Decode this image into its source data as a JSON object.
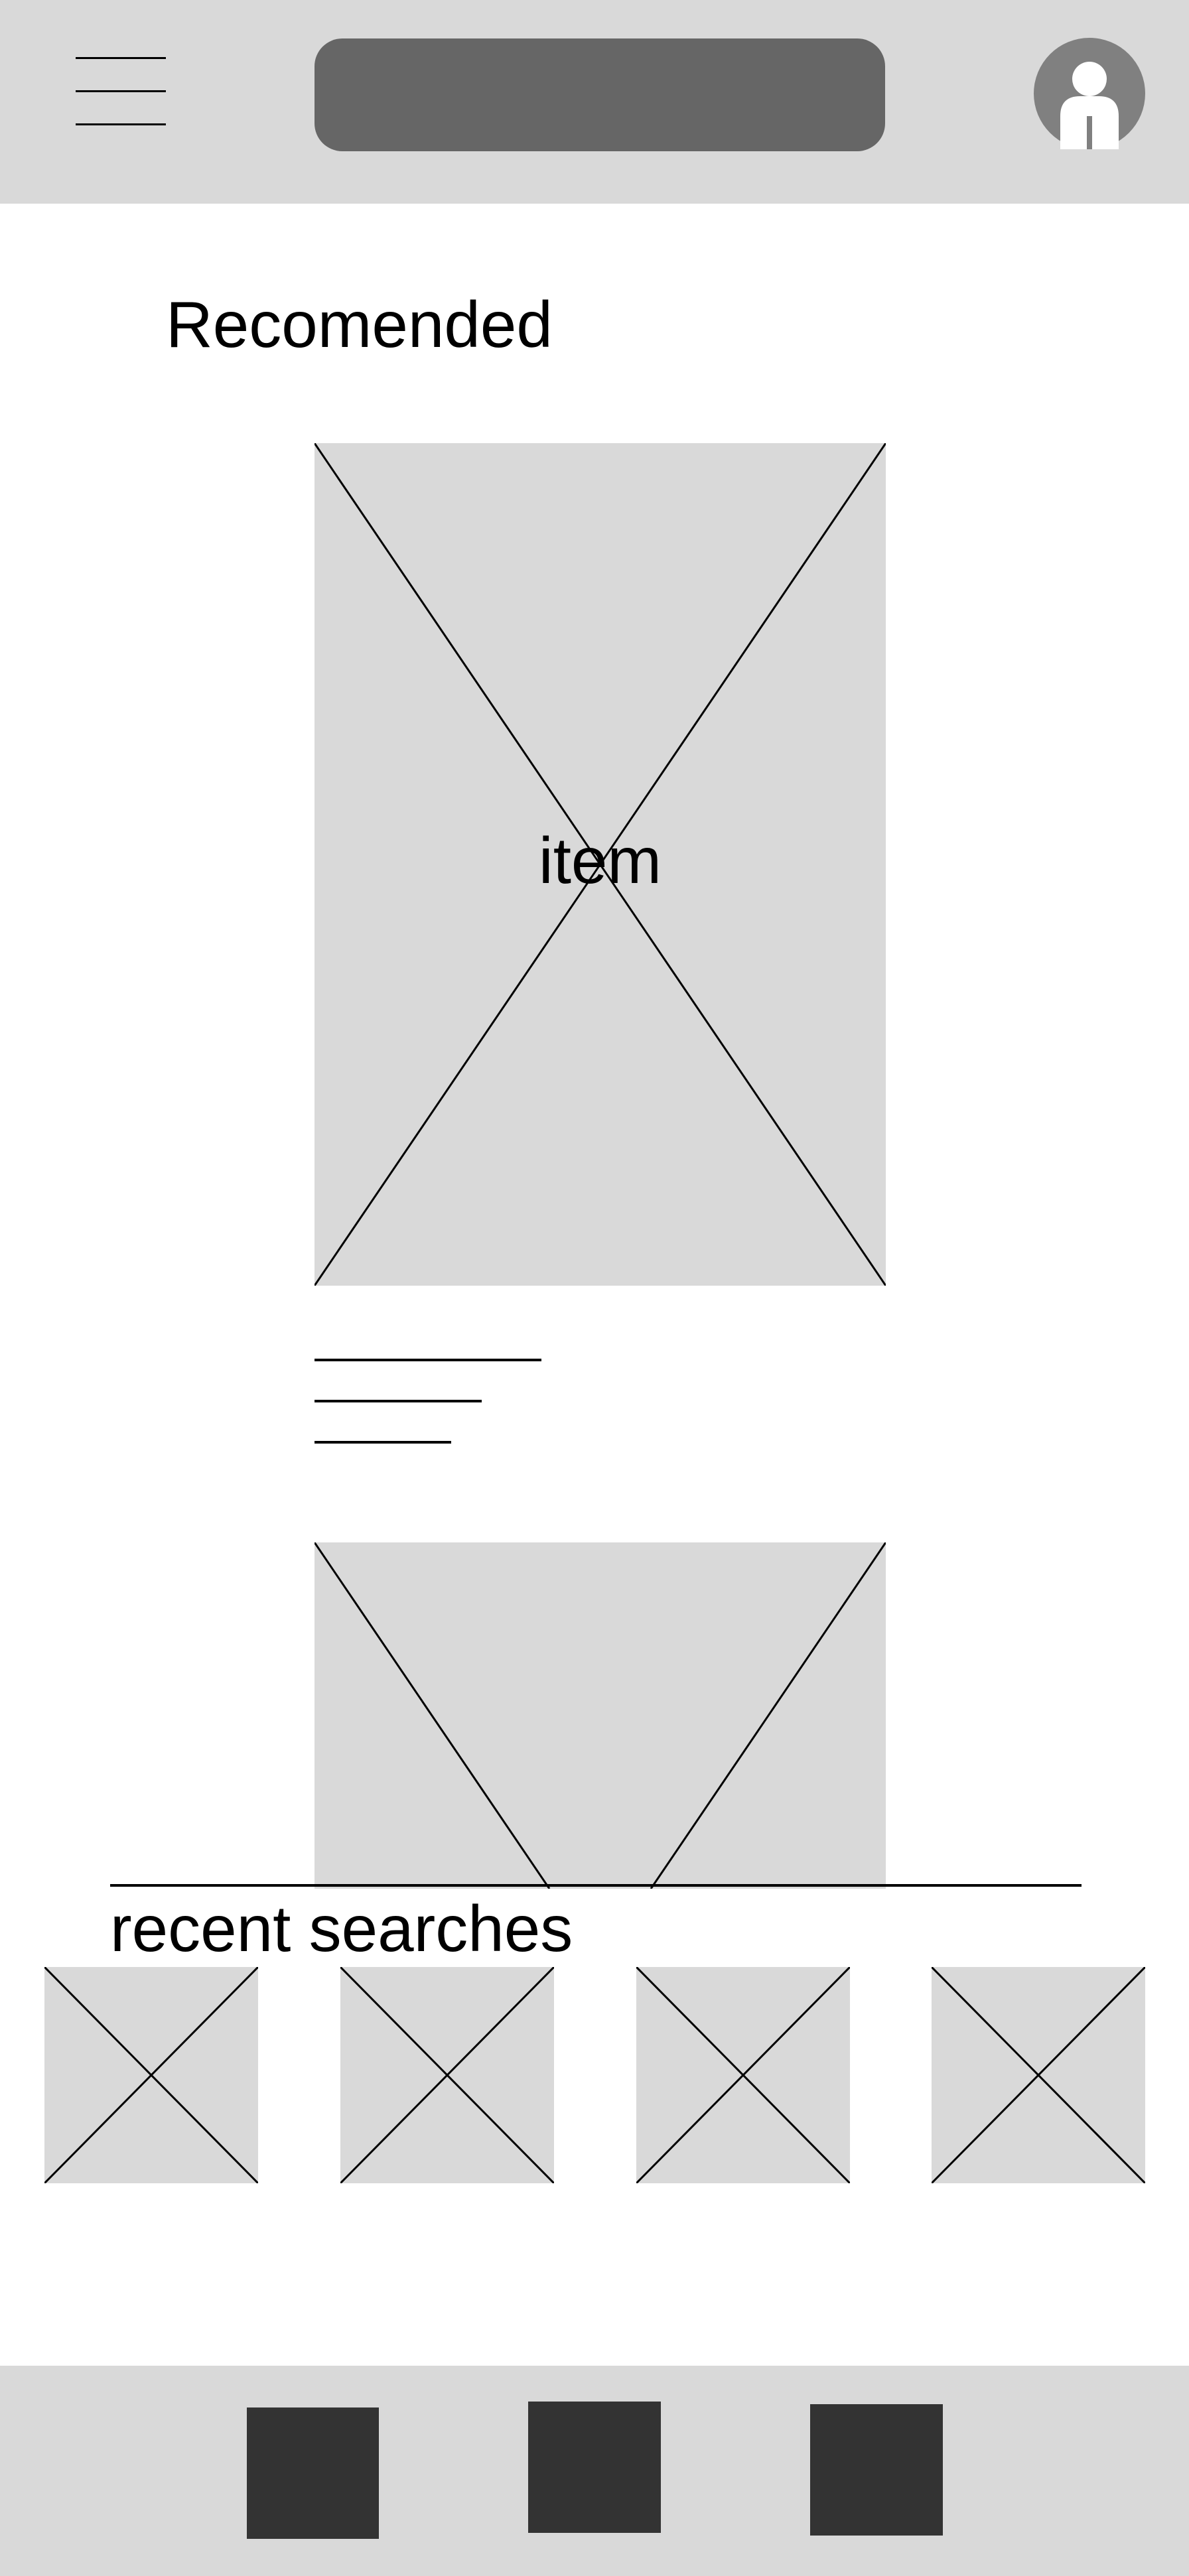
{
  "header": {
    "menu_icon": "hamburger-menu-icon",
    "search_placeholder": "",
    "avatar_icon": "user-avatar-icon",
    "bar_color": "#d9d9d9",
    "search_color": "#666666"
  },
  "recommended": {
    "title": "Recomended",
    "item_label": "item",
    "placeholder_color": "#d9d9d9"
  },
  "recent_searches": {
    "title": "recent searches",
    "thumbnail_count": 4
  },
  "bottom_nav": {
    "button_color": "#333333",
    "items": [
      "nav-button-1",
      "nav-button-2",
      "nav-button-3"
    ]
  }
}
